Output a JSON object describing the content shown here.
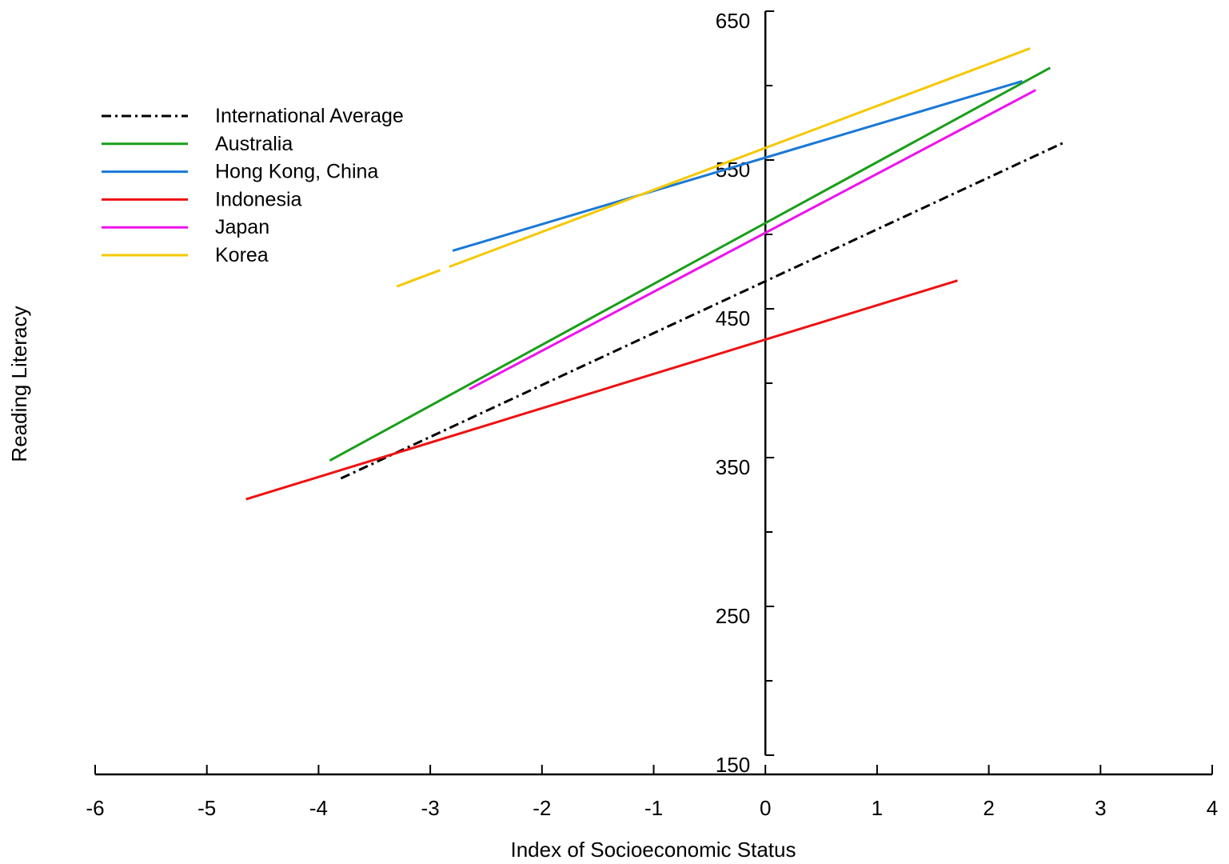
{
  "chart_data": {
    "type": "line",
    "title": "",
    "xlabel": "Index of Socioeconomic Status",
    "ylabel": "Reading Literacy",
    "xlim": [
      -6,
      4
    ],
    "ylim": [
      150,
      650
    ],
    "x_ticks": [
      -6,
      -5,
      -4,
      -3,
      -2,
      -1,
      0,
      1,
      2,
      3,
      4
    ],
    "x_tick_labels": [
      "-6",
      "-5",
      "-4",
      "-3",
      "-2",
      "-1",
      "0",
      "1",
      "2",
      "3",
      "4"
    ],
    "y_ticks_major": [
      150,
      250,
      350,
      450,
      550,
      650
    ],
    "y_tick_labels": [
      "150",
      "250",
      "350",
      "450",
      "550",
      "650"
    ],
    "y_ticks_minor": [
      200,
      300,
      400,
      500,
      600
    ],
    "y_axis_position_x": 0,
    "grid": false,
    "legend_position": "top-left",
    "series": [
      {
        "name": "International Average",
        "color": "#000000",
        "dash": "dashdot",
        "x": [
          -3.8,
          2.68
        ],
        "y": [
          336,
          562
        ]
      },
      {
        "name": "Australia",
        "color": "#1a9e1a",
        "dash": "solid",
        "x": [
          -3.9,
          2.55
        ],
        "y": [
          348,
          612
        ]
      },
      {
        "name": "Hong Kong, China",
        "color": "#1a78d6",
        "dash": "solid",
        "x": [
          -2.8,
          2.3
        ],
        "y": [
          489,
          603
        ]
      },
      {
        "name": "Indonesia",
        "color": "#ee1111",
        "dash": "solid",
        "x": [
          -4.65,
          1.72
        ],
        "y": [
          322,
          469
        ]
      },
      {
        "name": "Japan",
        "color": "#ee11ee",
        "dash": "solid",
        "x": [
          -2.65,
          2.42
        ],
        "y": [
          396,
          597
        ]
      },
      {
        "name": "Korea",
        "color": "#f5c800",
        "dash": "korea",
        "x": [
          -3.3,
          2.37
        ],
        "y": [
          465,
          625
        ]
      }
    ]
  }
}
